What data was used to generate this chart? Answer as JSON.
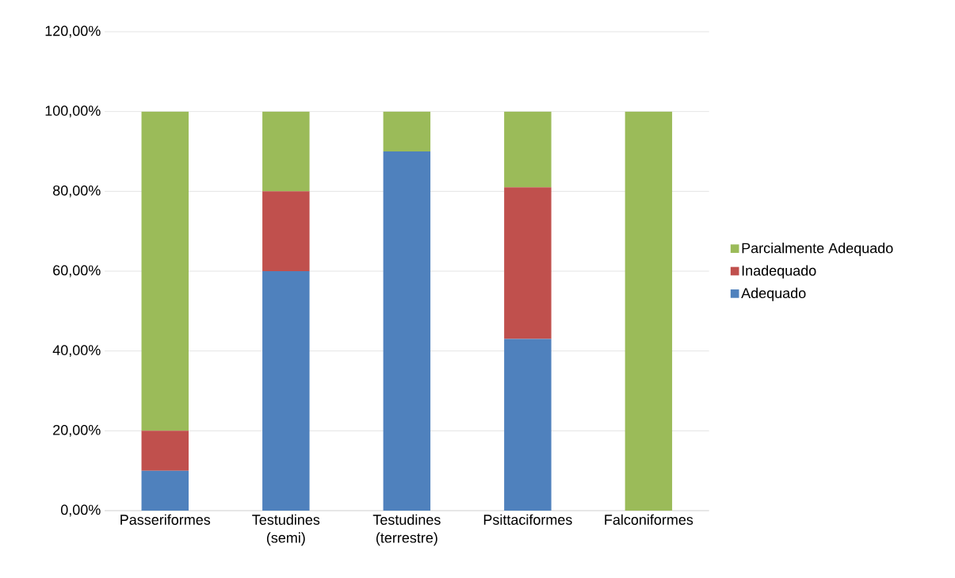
{
  "chart_data": {
    "type": "bar",
    "stacked": true,
    "categories": [
      "Passeriformes",
      "Testudines (semi)",
      "Testudines (terrestre)",
      "Psittaciformes",
      "Falconiformes"
    ],
    "series": [
      {
        "name": "Adequado",
        "color": "#4f81bd",
        "values": [
          10,
          60,
          90,
          43,
          0
        ]
      },
      {
        "name": "Inadequado",
        "color": "#c0504d",
        "values": [
          10,
          20,
          0,
          38,
          0
        ]
      },
      {
        "name": "Parcialmente Adequado",
        "color": "#9bbb59",
        "values": [
          80,
          20,
          10,
          19,
          100
        ]
      }
    ],
    "ylim": [
      0,
      120
    ],
    "yticks": [
      {
        "value": 0,
        "label": "0,00%"
      },
      {
        "value": 20,
        "label": "20,00%"
      },
      {
        "value": 40,
        "label": "40,00%"
      },
      {
        "value": 60,
        "label": "60,00%"
      },
      {
        "value": 80,
        "label": "80,00%"
      },
      {
        "value": 100,
        "label": "100,00%"
      },
      {
        "value": 120,
        "label": "120,00%"
      }
    ],
    "grid": "y",
    "legend": "right"
  }
}
